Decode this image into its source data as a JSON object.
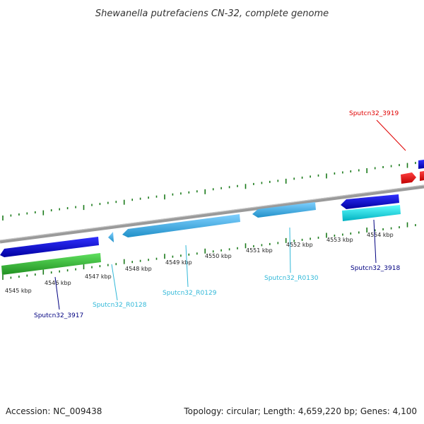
{
  "title": "Shewanella putrefaciens CN-32, complete genome",
  "footer": {
    "accession": "Accession: NC_009438",
    "summary": "Topology: circular; Length: 4,659,220 bp; Genes: 4,100"
  },
  "ticks": [
    "4545 kbp",
    "4546 kbp",
    "4547 kbp",
    "4548 kbp",
    "4549 kbp",
    "4550 kbp",
    "4551 kbp",
    "4552 kbp",
    "4553 kbp",
    "4554 kbp"
  ],
  "genes": [
    {
      "name": "Sputcn32_3917",
      "color": "#000080"
    },
    {
      "name": "Sputcn32_R0128",
      "color": "#30b8d8"
    },
    {
      "name": "Sputcn32_R0129",
      "color": "#30b8d8"
    },
    {
      "name": "Sputcn32_R0130",
      "color": "#30b8d8"
    },
    {
      "name": "Sputcn32_3918",
      "color": "#000080"
    },
    {
      "name": "Sputcn32_3919",
      "color": "#e00000"
    }
  ],
  "colors": {
    "cds_blue": "#1010e0",
    "rna_light_blue": "#40b0e8",
    "gene_green": "#30c030",
    "gene_cyan": "#10e8e8",
    "gene_red": "#e81010",
    "backbone": "#808080",
    "tick_green": "#1a7a1a"
  }
}
